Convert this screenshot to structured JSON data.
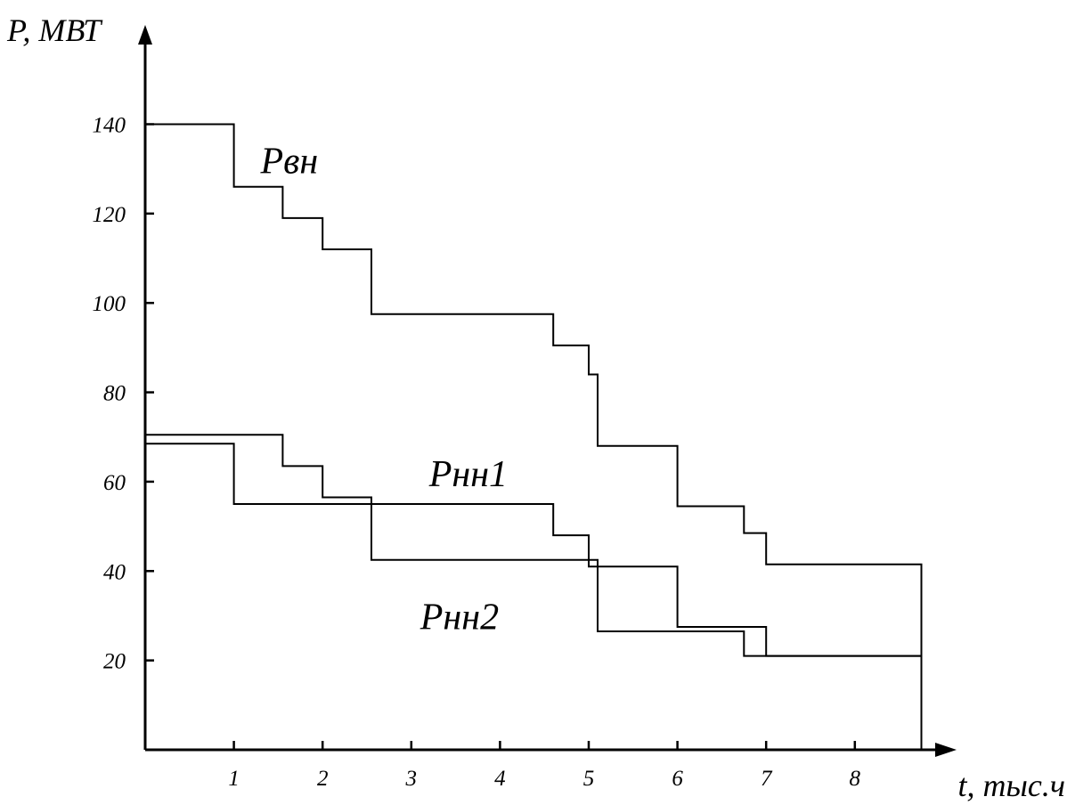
{
  "chart_data": {
    "type": "line",
    "step": true,
    "ylabel": "P, МВТ",
    "xlabel": "t, тыс.ч",
    "xlim": [
      0,
      8.75
    ],
    "ylim": [
      0,
      150
    ],
    "x_ticks": [
      1,
      2,
      3,
      4,
      5,
      6,
      7,
      8
    ],
    "y_ticks": [
      20,
      40,
      60,
      80,
      100,
      120,
      140
    ],
    "grid": false,
    "series": [
      {
        "name": "Pвн",
        "x": [
          0,
          1,
          1,
          1.55,
          1.55,
          2,
          2,
          2.55,
          2.55,
          4.6,
          4.6,
          5,
          5,
          5.1,
          5.1,
          6,
          6,
          6.75,
          6.75,
          7,
          7,
          8.75,
          8.75
        ],
        "y": [
          140,
          140,
          126,
          126,
          119,
          119,
          112,
          112,
          97.5,
          97.5,
          90.5,
          90.5,
          84,
          84,
          68,
          68,
          54.5,
          54.5,
          48.5,
          48.5,
          41.5,
          41.5,
          0
        ]
      },
      {
        "name": "Pнн1",
        "x": [
          0,
          1.55,
          1.55,
          2,
          2,
          2.55,
          2.55,
          4.6,
          4.6,
          5,
          5,
          6,
          6,
          7,
          7,
          8.75
        ],
        "y": [
          70.5,
          70.5,
          63.5,
          63.5,
          56.5,
          56.5,
          55,
          55,
          48,
          48,
          41,
          41,
          27.5,
          27.5,
          21,
          21
        ]
      },
      {
        "name": "Pнн2",
        "x": [
          0,
          1,
          1,
          2.55,
          2.55,
          5.1,
          5.1,
          6.75,
          6.75,
          8.75
        ],
        "y": [
          68.5,
          68.5,
          55,
          55,
          42.5,
          42.5,
          26.5,
          26.5,
          21,
          21
        ]
      }
    ]
  }
}
